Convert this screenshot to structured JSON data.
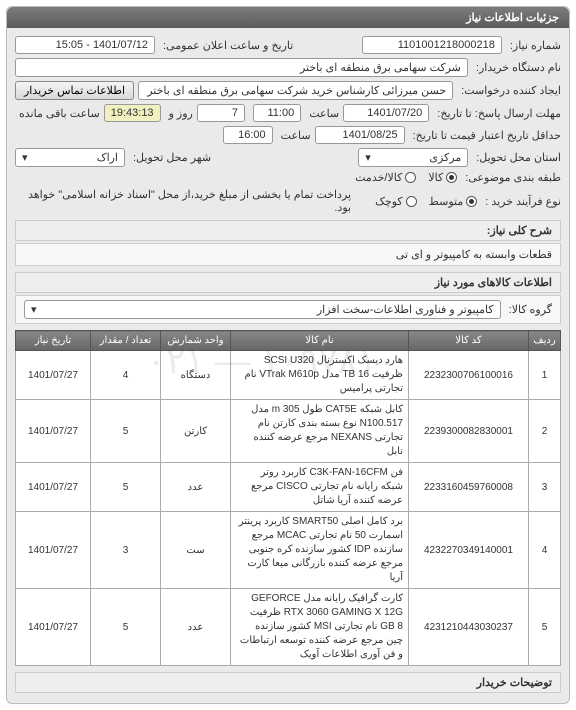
{
  "panel_title": "جزئیات اطلاعات نیاز",
  "fields": {
    "need_no_label": "شماره نیاز:",
    "need_no": "1101001218000218",
    "public_time_label": "تاریخ و ساعت اعلان عمومی:",
    "public_time": "1401/07/12 - 15:05",
    "buyer_org_label": "نام دستگاه خریدار:",
    "buyer_org": "شرکت سهامی برق منطقه ای باختر",
    "requester_label": "ایجاد کننده درخواست:",
    "requester": "حسن میرزائی کارشناس خرید شرکت سهامی برق منطقه ای باختر",
    "contact_btn": "اطلاعات تماس خریدار",
    "deadline_label": "مهلت ارسال پاسخ: تا تاریخ:",
    "deadline_date": "1401/07/20",
    "time_label": "ساعت",
    "deadline_time": "11:00",
    "days_label": "روز و",
    "days": "7",
    "remaining_label": "ساعت باقی مانده",
    "countdown": "19:43:13",
    "credit_label": "حداقل تاریخ اعتبار قیمت تا تاریخ:",
    "credit_date": "1401/08/25",
    "credit_time": "16:00",
    "province_label": "استان محل تحویل:",
    "province": "مرکزی",
    "province_icon": "▾",
    "city_label": "شهر محل تحویل:",
    "city": "اراک",
    "city_icon": "▾",
    "packing_label": "طبقه بندی موضوعی:",
    "packing_service": "کالا/خدمت",
    "packing_goods": "کالا",
    "payment_label": "نوع فرآیند خرید :",
    "pay_note": "پرداخت تمام یا بخشی از مبلغ خرید،از محل \"اسناد خزانه اسلامی\" خواهد بود.",
    "pay_small": "کوچک",
    "pay_medium": "متوسط"
  },
  "desc": {
    "title": "شرح کلی نیاز:",
    "value": "قطعات وابسته به کامپیوتر و ای تی"
  },
  "goods": {
    "title": "اطلاعات کالاهای مورد نیاز",
    "group_label": "گروه کالا:",
    "group_value": "کامپیوتر و فناوری اطلاعات-سخت افزار",
    "group_icon": "▾"
  },
  "table": {
    "headers": [
      "ردیف",
      "کد کالا",
      "نام کالا",
      "واحد شمارش",
      "تعداد / مقدار",
      "تاریخ نیاز"
    ],
    "rows": [
      {
        "idx": "1",
        "code": "2232300706100016",
        "name": "هارد دیسک اکسترنال SCSI U320 ظرفیت TB 16 مدل VTrak M610p نام تجارتی پرامیس",
        "unit": "دستگاه",
        "qty": "4",
        "date": "1401/07/27"
      },
      {
        "idx": "2",
        "code": "2239300082830001",
        "name": "کابل شبکه CAT5E طول m 305 مدل N100.517 نوع بسته بندی کارتن نام تجارتی NEXANS مرجع عرضه کننده نابل",
        "unit": "کارتن",
        "qty": "5",
        "date": "1401/07/27"
      },
      {
        "idx": "3",
        "code": "2233160459760008",
        "name": "فن C3K-FAN-16CFM کاربرد روتر شبکه رایانه نام تجارتی CISCO مرجع عرضه کننده آریا شاتل",
        "unit": "عدد",
        "qty": "5",
        "date": "1401/07/27"
      },
      {
        "idx": "4",
        "code": "4232270349140001",
        "name": "برد کامل اصلی SMART50 کاربرد پرینتر اسمارت 50 نام تجارتی MCAC مرجع سازنده IDP کشور سازنده کره جنوبی مرجع عرضه کننده بازرگانی میعا کارت آریا",
        "unit": "ست",
        "qty": "3",
        "date": "1401/07/27"
      },
      {
        "idx": "5",
        "code": "4231210443030237",
        "name": "کارت گرافیک رایانه مدل GEFORCE RTX 3060 GAMING X 12G ظرفیت GB 8 نام تجارتی MSI کشور سازنده چین مرجع عرضه کننده توسعه ارتباطات و فن آوری اطلاعات آویک",
        "unit": "عدد",
        "qty": "5",
        "date": "1401/07/27"
      }
    ]
  },
  "specs_title": "توضیحات خریدار"
}
